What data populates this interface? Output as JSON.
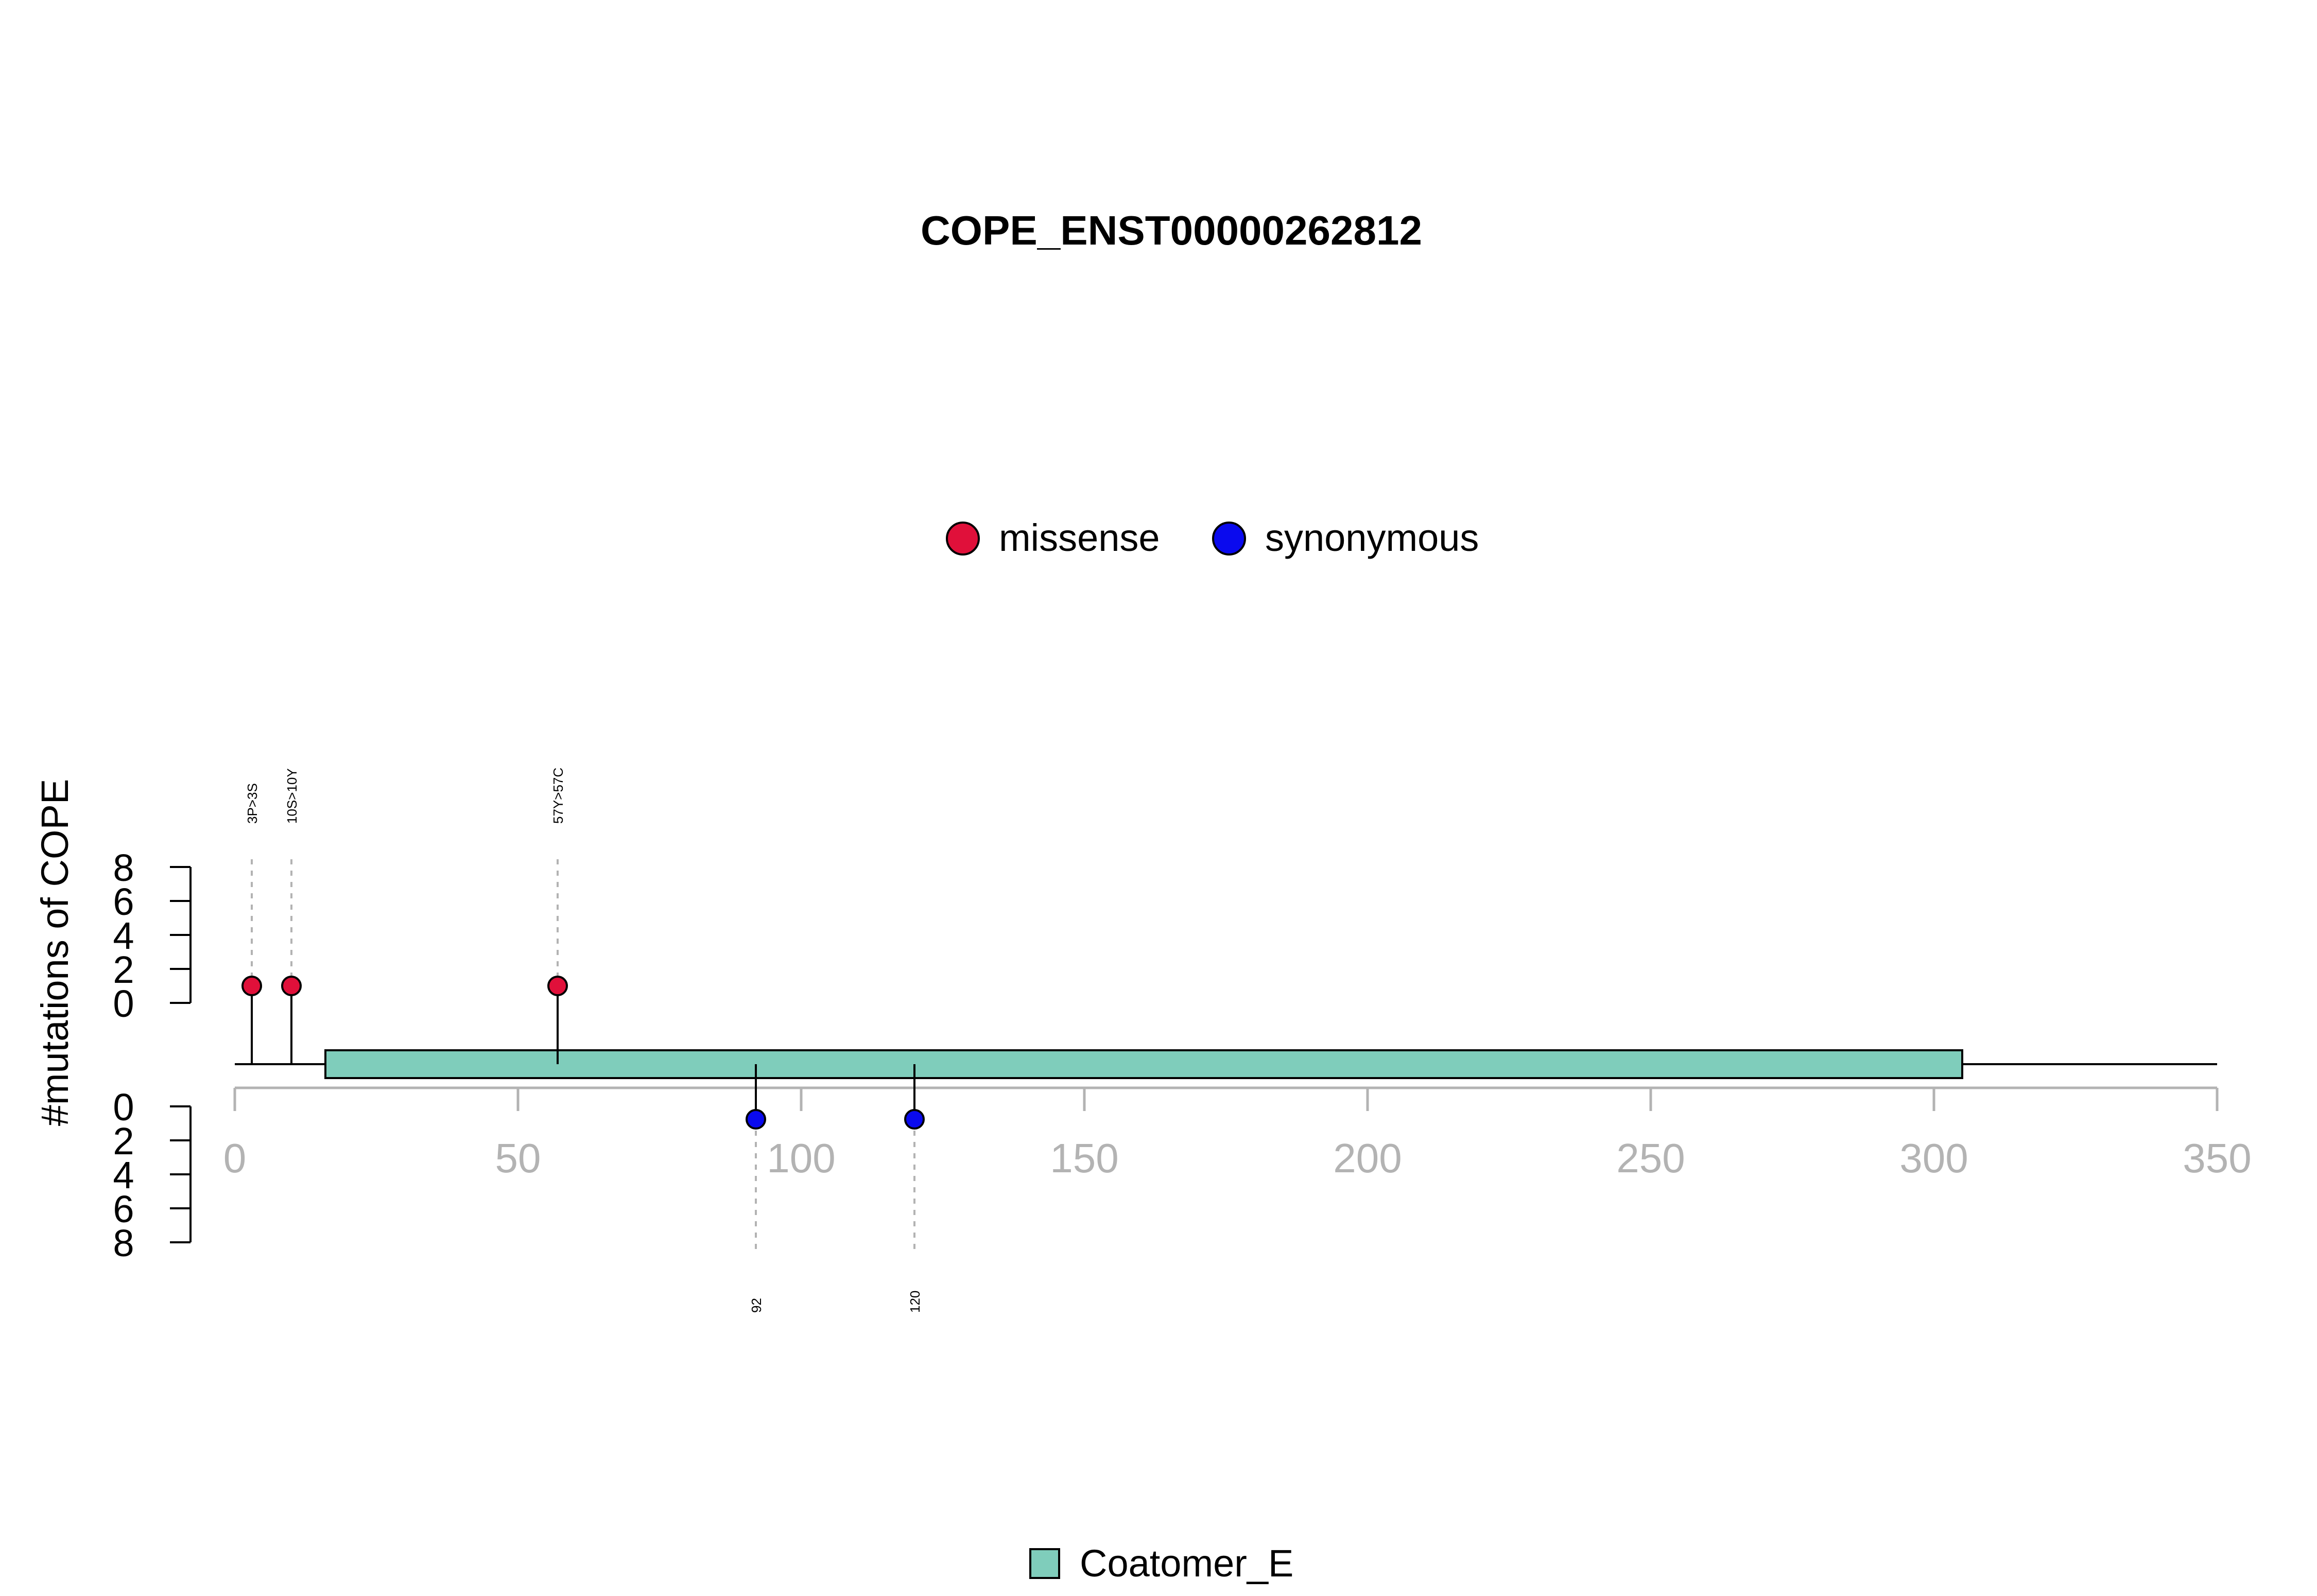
{
  "chart_data": {
    "type": "lollipop",
    "title": "COPE_ENST00000262812",
    "ylabel": "#mutations of COPE",
    "xlim": [
      0,
      350
    ],
    "x_ticks": [
      0,
      50,
      100,
      150,
      200,
      250,
      300,
      350
    ],
    "y_ticks": [
      0,
      2,
      4,
      6,
      8
    ],
    "ylim": [
      0,
      8
    ],
    "protein_length": 350,
    "legend_top": [
      {
        "label": "missense",
        "color": "#e0103a"
      },
      {
        "label": "synonymous",
        "color": "#0a0aee"
      }
    ],
    "legend_bottom": [
      {
        "label": "Coatomer_E",
        "color": "#7fcdbb"
      }
    ],
    "domains": [
      {
        "name": "Coatomer_E",
        "start": 16,
        "end": 305,
        "color": "#7fcdbb"
      }
    ],
    "mutations_top": [
      {
        "position": 3,
        "count": 1,
        "label": "3P>3S",
        "type": "missense"
      },
      {
        "position": 10,
        "count": 1,
        "label": "10S>10Y",
        "type": "missense"
      },
      {
        "position": 57,
        "count": 1,
        "label": "57Y>57C",
        "type": "missense"
      }
    ],
    "mutations_bottom": [
      {
        "position": 92,
        "count": 1,
        "label": "92",
        "type": "synonymous"
      },
      {
        "position": 120,
        "count": 1,
        "label": "120",
        "type": "synonymous"
      }
    ]
  }
}
